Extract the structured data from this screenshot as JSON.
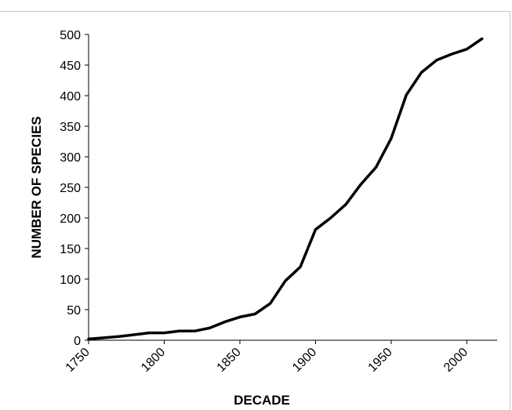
{
  "chart_data": {
    "type": "line",
    "title": "",
    "xlabel": "DECADE",
    "ylabel": "NUMBER OF SPECIES",
    "xlim": [
      1750,
      2020
    ],
    "ylim": [
      0,
      500
    ],
    "x_ticks": [
      1750,
      1800,
      1850,
      1900,
      1950,
      2000
    ],
    "y_ticks": [
      0,
      50,
      100,
      150,
      200,
      250,
      300,
      350,
      400,
      450,
      500
    ],
    "x_tick_labels": [
      "1750",
      "1800",
      "1850",
      "1900",
      "1950",
      "2000"
    ],
    "y_tick_labels": [
      "0",
      "50",
      "100",
      "150",
      "200",
      "250",
      "300",
      "350",
      "400",
      "450",
      "500"
    ],
    "grid": false,
    "legend": "none",
    "line_color": "#000000",
    "series": [
      {
        "x": [
          1750,
          1760,
          1770,
          1780,
          1790,
          1800,
          1810,
          1820,
          1830,
          1840,
          1850,
          1860,
          1870,
          1880,
          1890,
          1900,
          1910,
          1920,
          1930,
          1940,
          1950,
          1960,
          1970,
          1980,
          1990,
          2000,
          2010
        ],
        "values": [
          2,
          4,
          6,
          9,
          12,
          12,
          15,
          15,
          20,
          30,
          38,
          43,
          60,
          97,
          120,
          181,
          200,
          222,
          255,
          283,
          330,
          401,
          438,
          458,
          468,
          476,
          493
        ]
      }
    ]
  }
}
